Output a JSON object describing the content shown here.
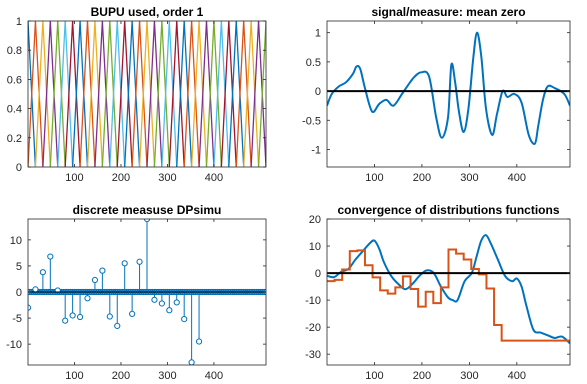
{
  "figure": {
    "background": "#ffffff",
    "axes_color": "#262626"
  },
  "chart_data": [
    {
      "id": "bupu",
      "type": "line",
      "title": "BUPU used, order 1",
      "xlim": [
        0,
        512
      ],
      "ylim": [
        0,
        1
      ],
      "xticks": [
        100,
        200,
        300,
        400
      ],
      "yticks": [
        0,
        0.2,
        0.4,
        0.6,
        0.8,
        1
      ],
      "xtick_labels": [
        "100",
        "200",
        "300",
        "400"
      ],
      "ytick_labels": [
        "0",
        "0.2",
        "0.4",
        "0.6",
        "0.8",
        "1"
      ],
      "basis": {
        "kind": "triangular hat functions",
        "order": 1,
        "knot_spacing": 16,
        "knots": [
          0,
          512
        ]
      },
      "color_cycle": [
        "#0072BD",
        "#D95319",
        "#EDB120",
        "#7E2F8E",
        "#77AC30",
        "#4DBEEE",
        "#A2142F"
      ],
      "grid": false
    },
    {
      "id": "signal",
      "type": "line",
      "title": "signal/measure: mean zero",
      "xlim": [
        0,
        512
      ],
      "ylim": [
        -1.3,
        1.2
      ],
      "xticks": [
        100,
        200,
        300,
        400
      ],
      "yticks": [
        -1,
        -0.5,
        0,
        0.5,
        1
      ],
      "xtick_labels": [
        "100",
        "200",
        "300",
        "400"
      ],
      "ytick_labels": [
        "-1",
        "-0.5",
        "0",
        "0.5",
        "1"
      ],
      "zero_line_color": "#000000",
      "series": [
        {
          "color": "#0072BD",
          "x": [
            0,
            10,
            25,
            40,
            55,
            62,
            70,
            80,
            95,
            110,
            125,
            140,
            158,
            175,
            185,
            198,
            215,
            230,
            242,
            255,
            262,
            270,
            278,
            288,
            298,
            308,
            316,
            325,
            335,
            348,
            358,
            370,
            380,
            395,
            410,
            425,
            438,
            445,
            455,
            465,
            480,
            500,
            512
          ],
          "y": [
            -0.25,
            -0.05,
            0.08,
            0.15,
            0.3,
            0.42,
            0.38,
            0.05,
            -0.35,
            -0.22,
            -0.15,
            -0.25,
            -0.05,
            0.15,
            0.25,
            0.32,
            0.25,
            -0.45,
            -0.8,
            -0.45,
            0.45,
            0.15,
            -0.35,
            -0.7,
            -0.3,
            0.55,
            1.0,
            0.6,
            -0.3,
            -0.75,
            -0.4,
            0.0,
            -0.1,
            -0.05,
            -0.2,
            -0.75,
            -0.9,
            -0.6,
            -0.15,
            0.08,
            0.05,
            -0.05,
            -0.25
          ]
        }
      ],
      "grid": false
    },
    {
      "id": "dpsimu",
      "type": "stem",
      "title": "discrete measuse DPsimu",
      "xlim": [
        0,
        512
      ],
      "ylim": [
        -14,
        14
      ],
      "xticks": [
        100,
        200,
        300,
        400
      ],
      "yticks": [
        -10,
        -5,
        0,
        5,
        10
      ],
      "xtick_labels": [
        "100",
        "200",
        "300",
        "400"
      ],
      "ytick_labels": [
        "-10",
        "-5",
        "0",
        "5",
        "10"
      ],
      "baseline_color": "#000000",
      "color": "#0072BD",
      "x": [
        0,
        16,
        32,
        48,
        64,
        80,
        96,
        112,
        128,
        144,
        160,
        176,
        192,
        208,
        224,
        240,
        256,
        272,
        288,
        304,
        320,
        336,
        352,
        368,
        384,
        400,
        416,
        432,
        448,
        464,
        480,
        496,
        512
      ],
      "values": [
        -3,
        0.5,
        3.8,
        6.8,
        0.3,
        -5.5,
        -4.5,
        -4.8,
        -1.2,
        2.3,
        4.1,
        -4.7,
        -6.5,
        5.5,
        -4.2,
        5.8,
        14,
        -1.5,
        -2.2,
        -3.5,
        -2.0,
        -5.2,
        -13.5,
        -9.5,
        0,
        0,
        0,
        0,
        0,
        0,
        0,
        0,
        0
      ],
      "grid": false
    },
    {
      "id": "convergence",
      "type": "line",
      "title": "convergence of distributions functions",
      "xlim": [
        0,
        512
      ],
      "ylim": [
        -34,
        20
      ],
      "xticks": [
        100,
        200,
        300,
        400
      ],
      "yticks": [
        -30,
        -20,
        -10,
        0,
        10,
        20
      ],
      "xtick_labels": [
        "100",
        "200",
        "300",
        "400"
      ],
      "ytick_labels": [
        "-30",
        "-20",
        "-10",
        "0",
        "10",
        "20"
      ],
      "zero_line_color": "#000000",
      "series": [
        {
          "color": "#0072BD",
          "x": [
            0,
            15,
            30,
            45,
            60,
            75,
            90,
            100,
            110,
            120,
            135,
            150,
            165,
            180,
            195,
            210,
            225,
            240,
            255,
            265,
            275,
            290,
            305,
            315,
            325,
            335,
            345,
            360,
            375,
            390,
            400,
            410,
            420,
            435,
            450,
            465,
            480,
            495,
            512
          ],
          "y": [
            -1,
            -1.5,
            0.5,
            1.5,
            5,
            8,
            11,
            12,
            9,
            4,
            -1,
            -4,
            -6,
            -4,
            -1,
            1,
            0,
            -5,
            -9,
            -10,
            -10,
            -3,
            0,
            6,
            12,
            14,
            11,
            5,
            -1,
            -3,
            -2,
            -5,
            -12,
            -21,
            -22,
            -23,
            -24,
            -23.5,
            -26
          ]
        },
        {
          "color": "#D95319",
          "step": true,
          "x": [
            0,
            16,
            32,
            48,
            64,
            80,
            96,
            112,
            128,
            144,
            160,
            176,
            192,
            208,
            224,
            240,
            256,
            272,
            288,
            304,
            320,
            336,
            352,
            368,
            384,
            400,
            416,
            432,
            448,
            464,
            480,
            496,
            512
          ],
          "y": [
            -3,
            -2.5,
            1.3,
            8.1,
            8.4,
            2.9,
            -1.6,
            -6.4,
            -7.6,
            -5.3,
            -1.2,
            -5.9,
            -12.4,
            -6.9,
            -11.1,
            -5.3,
            8.7,
            7.2,
            5.0,
            1.5,
            -0.5,
            -5.7,
            -19.2,
            -25,
            -25,
            -25,
            -25,
            -25,
            -25,
            -25,
            -25,
            -25,
            -25
          ]
        }
      ],
      "grid": false
    }
  ]
}
